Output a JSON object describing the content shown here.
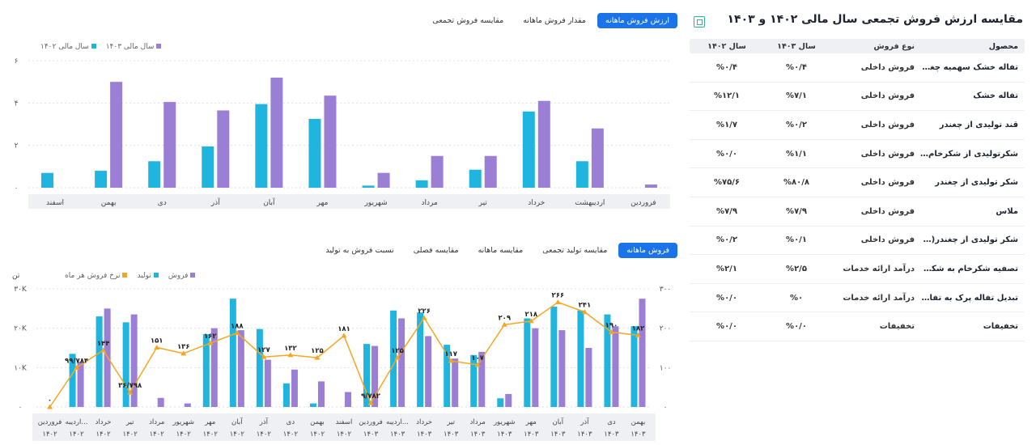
{
  "chart1": {
    "tabs": [
      {
        "label": "ارزش فروش ماهانه",
        "active": true
      },
      {
        "label": "مقدار فروش ماهانه",
        "active": false
      },
      {
        "label": "مقایسه فروش تجمعی",
        "active": false
      }
    ],
    "legend": [
      "سال مالی ۱۴۰۳",
      "سال مالی ۱۴۰۲"
    ]
  },
  "chart2": {
    "tabs": [
      {
        "label": "فروش ماهانه",
        "active": true
      },
      {
        "label": "مقایسه تولید تجمعی",
        "active": false
      },
      {
        "label": "مقایسه ماهانه",
        "active": false
      },
      {
        "label": "مقایسه فصلی",
        "active": false
      },
      {
        "label": "نسبت فروش به تولید",
        "active": false
      }
    ],
    "legend": [
      "فروش",
      "تولید",
      "نرخ فروش هر ماه"
    ],
    "left_unit": "تن"
  },
  "chart_data": [
    {
      "type": "bar",
      "categories": [
        "فروردین",
        "اردیبهشت",
        "خرداد",
        "تیر",
        "مرداد",
        "شهریور",
        "مهر",
        "آبان",
        "آذر",
        "دی",
        "بهمن",
        "اسفند"
      ],
      "series": [
        {
          "name": "سال مالی ۱۴۰۳",
          "values": [
            0.15,
            2.8,
            4.1,
            1.5,
            1.5,
            0.7,
            4.35,
            5.2,
            3.65,
            4.05,
            5.0,
            0
          ]
        },
        {
          "name": "سال مالی ۱۴۰۲",
          "values": [
            0,
            1.25,
            3.6,
            0.85,
            0.35,
            0.1,
            3.25,
            3.95,
            1.95,
            1.25,
            0.8,
            0.7
          ]
        }
      ],
      "y_ticks": [
        "۰",
        "۲",
        "۴",
        "۶"
      ],
      "ylim": [
        0,
        6
      ],
      "colors": {
        "s1403": "#9b7fd4",
        "s1402": "#1fb5de"
      }
    },
    {
      "type": "bar+line",
      "categories": [
        [
          "فروردین",
          "۱۴۰۲"
        ],
        [
          "اردیبه...",
          "۱۴۰۲"
        ],
        [
          "خرداد",
          "۱۴۰۲"
        ],
        [
          "تیر",
          "۱۴۰۲"
        ],
        [
          "مرداد",
          "۱۴۰۲"
        ],
        [
          "شهریور",
          "۱۴۰۲"
        ],
        [
          "مهر",
          "۱۴۰۲"
        ],
        [
          "آبان",
          "۱۴۰۲"
        ],
        [
          "آذر",
          "۱۴۰۲"
        ],
        [
          "دی",
          "۱۴۰۲"
        ],
        [
          "بهمن",
          "۱۴۰۲"
        ],
        [
          "اسفند",
          "۱۴۰۲"
        ],
        [
          "فروردین",
          "۱۴۰۳"
        ],
        [
          "اردیبه...",
          "۱۴۰۳"
        ],
        [
          "خرداد",
          "۱۴۰۳"
        ],
        [
          "تیر",
          "۱۴۰۳"
        ],
        [
          "مرداد",
          "۱۴۰۳"
        ],
        [
          "شهریور",
          "۱۴۰۳"
        ],
        [
          "مهر",
          "۱۴۰۳"
        ],
        [
          "آبان",
          "۱۴۰۳"
        ],
        [
          "آذر",
          "۱۴۰۳"
        ],
        [
          "دی",
          "۱۴۰۳"
        ],
        [
          "بهمن",
          "۱۴۰۳"
        ]
      ],
      "series": [
        {
          "name": "تولید",
          "values": [
            0,
            13500,
            23000,
            21500,
            0,
            0,
            18500,
            27500,
            19800,
            6000,
            900,
            0,
            16000,
            24500,
            24000,
            15800,
            13200,
            2200,
            22500,
            25500,
            24500,
            23500,
            20500
          ]
        },
        {
          "name": "فروش",
          "values": [
            0,
            11500,
            25000,
            23500,
            2300,
            900,
            20000,
            19500,
            12000,
            9500,
            6500,
            3800,
            15500,
            22500,
            18000,
            12300,
            14000,
            3300,
            20000,
            19500,
            15000,
            20500,
            27500
          ]
        },
        {
          "name": "نرخ فروش هر ماه",
          "values": [
            0,
            99.784,
            144,
            36.798,
            151,
            136,
            162,
            188,
            127,
            132,
            125,
            181,
            9.782,
            125,
            226,
            117,
            107,
            209,
            218,
            266,
            241,
            190,
            182
          ]
        }
      ],
      "point_labels": [
        "۰",
        "۹۹/۷۸۴",
        "۱۴۴",
        "۳۶/۷۹۸",
        "۱۵۱",
        "۱۳۶",
        "۱۶۲",
        "۱۸۸",
        "۱۲۷",
        "۱۳۲",
        "۱۲۵",
        "۱۸۱",
        "۹/۷۸۲",
        "۱۲۵",
        "۲۲۶",
        "۱۱۷",
        "۱۰۷",
        "۲۰۹",
        "۲۱۸",
        "۲۶۶",
        "۲۴۱",
        "۱۹۰",
        "۱۸۲"
      ],
      "left_ticks": [
        "۰",
        "۱۰K",
        "۲۰K",
        "۳۰K"
      ],
      "right_ticks": [
        "۰",
        "۱۰۰",
        "۲۰۰",
        "۳۰۰"
      ],
      "ylim_left": [
        0,
        30000
      ],
      "ylim_right": [
        0,
        300
      ],
      "colors": {
        "sales": "#9b7fd4",
        "production": "#1fb5de",
        "rate": "#f5a623"
      }
    }
  ],
  "right_panel": {
    "title": "مقایسه ارزش فروش تجمعی سال مالی ۱۴۰۲ و ۱۴۰۳",
    "columns": [
      "محصول",
      "نوع فروش",
      "سال ۱۴۰۳",
      "سال ۱۴۰۲"
    ],
    "rows": [
      [
        "تفاله خشک سهمیه چغندرکاران",
        "فروش داخلی",
        "%۰/۴",
        "%۰/۴"
      ],
      [
        "تفاله خشک",
        "فروش داخلی",
        "%۷/۱",
        "%۱۲/۱"
      ],
      [
        "قند تولیدی از چغندر",
        "فروش داخلی",
        "%۰/۲",
        "%۱/۷"
      ],
      [
        "شکرتولیدی از شکرخام خریداری",
        "فروش داخلی",
        "%۱/۱",
        "%۰/۰"
      ],
      [
        "شکر تولیدی از چغندر",
        "فروش داخلی",
        "%۸۰/۸",
        "%۷۵/۶"
      ],
      [
        "ملاس",
        "فروش داخلی",
        "%۷/۹",
        "%۷/۹"
      ],
      [
        "شکر تولیدی از چغندر(سهمیه چغند...",
        "فروش داخلی",
        "%۰/۱",
        "%۰/۲"
      ],
      [
        "تصفیه شکرخام به شکر سفید (کار...",
        "درآمد ارائه خدمات",
        "%۲/۵",
        "%۲/۱"
      ],
      [
        "تبدیل تفاله پرک به تفاله خشک",
        "درآمد ارائه خدمات",
        "%۰",
        "%۰/۰"
      ],
      [
        "تخفیفات",
        "تخفیفات",
        "%۰/۰",
        "%۰/۰"
      ]
    ]
  }
}
